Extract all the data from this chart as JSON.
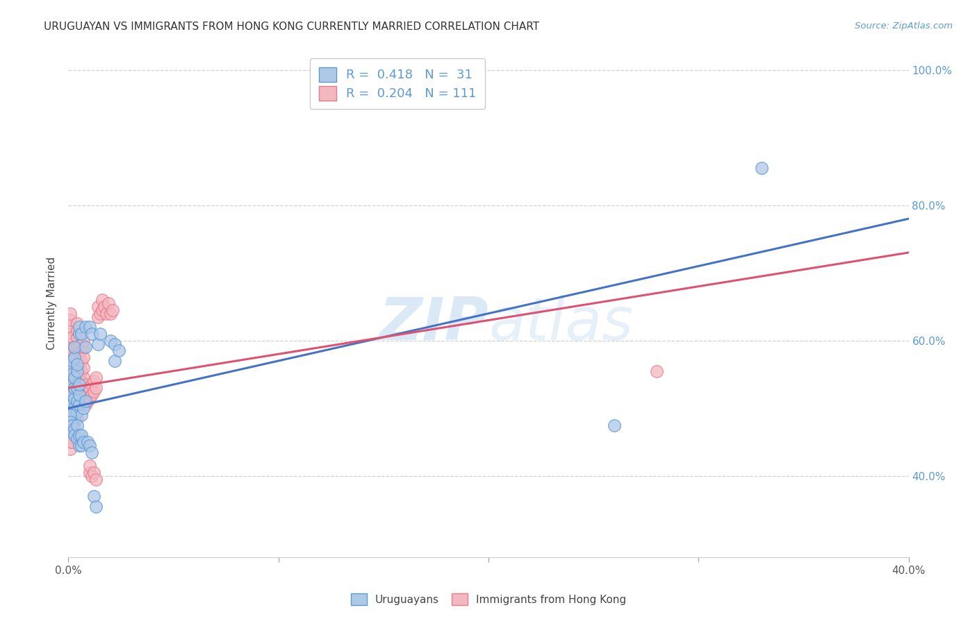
{
  "title": "URUGUAYAN VS IMMIGRANTS FROM HONG KONG CURRENTLY MARRIED CORRELATION CHART",
  "source": "Source: ZipAtlas.com",
  "ylabel": "Currently Married",
  "xmin": 0.0,
  "xmax": 0.4,
  "ymin": 0.28,
  "ymax": 1.03,
  "watermark": "ZIPAtlas",
  "blue_color": "#aec8e8",
  "pink_color": "#f4b8c1",
  "blue_edge_color": "#5b9bd5",
  "pink_edge_color": "#e87a8a",
  "blue_line_color": "#4472c4",
  "pink_line_color": "#e05070",
  "legend_label_blue": "Uruguayans",
  "legend_label_pink": "Immigrants from Hong Kong",
  "blue_scatter": [
    [
      0.001,
      0.51
    ],
    [
      0.001,
      0.51
    ],
    [
      0.002,
      0.505
    ],
    [
      0.002,
      0.52
    ],
    [
      0.002,
      0.535
    ],
    [
      0.002,
      0.49
    ],
    [
      0.002,
      0.56
    ],
    [
      0.002,
      0.57
    ],
    [
      0.002,
      0.55
    ],
    [
      0.003,
      0.5
    ],
    [
      0.003,
      0.515
    ],
    [
      0.003,
      0.53
    ],
    [
      0.003,
      0.545
    ],
    [
      0.003,
      0.485
    ],
    [
      0.003,
      0.575
    ],
    [
      0.003,
      0.59
    ],
    [
      0.004,
      0.495
    ],
    [
      0.004,
      0.51
    ],
    [
      0.004,
      0.53
    ],
    [
      0.004,
      0.555
    ],
    [
      0.004,
      0.565
    ],
    [
      0.005,
      0.505
    ],
    [
      0.005,
      0.52
    ],
    [
      0.005,
      0.535
    ],
    [
      0.005,
      0.61
    ],
    [
      0.005,
      0.62
    ],
    [
      0.006,
      0.49
    ],
    [
      0.006,
      0.61
    ],
    [
      0.008,
      0.62
    ],
    [
      0.008,
      0.59
    ],
    [
      0.01,
      0.62
    ],
    [
      0.011,
      0.61
    ],
    [
      0.014,
      0.595
    ],
    [
      0.015,
      0.61
    ],
    [
      0.02,
      0.6
    ],
    [
      0.022,
      0.595
    ],
    [
      0.022,
      0.57
    ],
    [
      0.024,
      0.585
    ],
    [
      0.001,
      0.49
    ],
    [
      0.001,
      0.48
    ],
    [
      0.002,
      0.475
    ],
    [
      0.002,
      0.465
    ],
    [
      0.003,
      0.47
    ],
    [
      0.003,
      0.46
    ],
    [
      0.004,
      0.475
    ],
    [
      0.004,
      0.455
    ],
    [
      0.005,
      0.46
    ],
    [
      0.005,
      0.445
    ],
    [
      0.006,
      0.46
    ],
    [
      0.006,
      0.445
    ],
    [
      0.007,
      0.5
    ],
    [
      0.007,
      0.45
    ],
    [
      0.008,
      0.51
    ],
    [
      0.009,
      0.45
    ],
    [
      0.01,
      0.445
    ],
    [
      0.011,
      0.435
    ],
    [
      0.012,
      0.37
    ],
    [
      0.013,
      0.355
    ],
    [
      0.26,
      0.475
    ],
    [
      0.33,
      0.855
    ]
  ],
  "pink_scatter": [
    [
      0.001,
      0.51
    ],
    [
      0.001,
      0.525
    ],
    [
      0.001,
      0.535
    ],
    [
      0.001,
      0.545
    ],
    [
      0.001,
      0.555
    ],
    [
      0.001,
      0.565
    ],
    [
      0.001,
      0.58
    ],
    [
      0.001,
      0.59
    ],
    [
      0.001,
      0.6
    ],
    [
      0.001,
      0.61
    ],
    [
      0.001,
      0.62
    ],
    [
      0.001,
      0.63
    ],
    [
      0.001,
      0.64
    ],
    [
      0.001,
      0.5
    ],
    [
      0.001,
      0.49
    ],
    [
      0.001,
      0.48
    ],
    [
      0.001,
      0.47
    ],
    [
      0.001,
      0.46
    ],
    [
      0.001,
      0.45
    ],
    [
      0.001,
      0.44
    ],
    [
      0.002,
      0.51
    ],
    [
      0.002,
      0.52
    ],
    [
      0.002,
      0.53
    ],
    [
      0.002,
      0.545
    ],
    [
      0.002,
      0.555
    ],
    [
      0.002,
      0.565
    ],
    [
      0.002,
      0.575
    ],
    [
      0.002,
      0.585
    ],
    [
      0.002,
      0.595
    ],
    [
      0.002,
      0.605
    ],
    [
      0.002,
      0.5
    ],
    [
      0.002,
      0.49
    ],
    [
      0.002,
      0.48
    ],
    [
      0.002,
      0.47
    ],
    [
      0.002,
      0.46
    ],
    [
      0.002,
      0.45
    ],
    [
      0.003,
      0.51
    ],
    [
      0.003,
      0.525
    ],
    [
      0.003,
      0.54
    ],
    [
      0.003,
      0.55
    ],
    [
      0.003,
      0.56
    ],
    [
      0.003,
      0.575
    ],
    [
      0.003,
      0.59
    ],
    [
      0.003,
      0.5
    ],
    [
      0.003,
      0.49
    ],
    [
      0.003,
      0.48
    ],
    [
      0.004,
      0.505
    ],
    [
      0.004,
      0.515
    ],
    [
      0.004,
      0.53
    ],
    [
      0.004,
      0.545
    ],
    [
      0.004,
      0.56
    ],
    [
      0.004,
      0.575
    ],
    [
      0.004,
      0.59
    ],
    [
      0.004,
      0.605
    ],
    [
      0.004,
      0.615
    ],
    [
      0.004,
      0.625
    ],
    [
      0.004,
      0.495
    ],
    [
      0.004,
      0.485
    ],
    [
      0.005,
      0.51
    ],
    [
      0.005,
      0.525
    ],
    [
      0.005,
      0.54
    ],
    [
      0.005,
      0.555
    ],
    [
      0.005,
      0.57
    ],
    [
      0.005,
      0.58
    ],
    [
      0.005,
      0.59
    ],
    [
      0.006,
      0.51
    ],
    [
      0.006,
      0.525
    ],
    [
      0.006,
      0.54
    ],
    [
      0.006,
      0.555
    ],
    [
      0.006,
      0.57
    ],
    [
      0.006,
      0.585
    ],
    [
      0.006,
      0.595
    ],
    [
      0.007,
      0.515
    ],
    [
      0.007,
      0.53
    ],
    [
      0.007,
      0.545
    ],
    [
      0.007,
      0.56
    ],
    [
      0.007,
      0.575
    ],
    [
      0.007,
      0.59
    ],
    [
      0.007,
      0.6
    ],
    [
      0.008,
      0.505
    ],
    [
      0.008,
      0.52
    ],
    [
      0.008,
      0.535
    ],
    [
      0.009,
      0.51
    ],
    [
      0.009,
      0.525
    ],
    [
      0.01,
      0.515
    ],
    [
      0.01,
      0.53
    ],
    [
      0.011,
      0.52
    ],
    [
      0.011,
      0.535
    ],
    [
      0.012,
      0.525
    ],
    [
      0.012,
      0.54
    ],
    [
      0.013,
      0.53
    ],
    [
      0.013,
      0.545
    ],
    [
      0.014,
      0.635
    ],
    [
      0.014,
      0.65
    ],
    [
      0.015,
      0.64
    ],
    [
      0.016,
      0.645
    ],
    [
      0.016,
      0.66
    ],
    [
      0.017,
      0.65
    ],
    [
      0.018,
      0.64
    ],
    [
      0.019,
      0.655
    ],
    [
      0.02,
      0.64
    ],
    [
      0.021,
      0.645
    ],
    [
      0.01,
      0.405
    ],
    [
      0.01,
      0.415
    ],
    [
      0.011,
      0.4
    ],
    [
      0.012,
      0.405
    ],
    [
      0.013,
      0.395
    ],
    [
      0.28,
      0.555
    ]
  ],
  "blue_line_x": [
    0.0,
    0.4
  ],
  "blue_line_y": [
    0.5,
    0.78
  ],
  "pink_line_x": [
    0.0,
    0.4
  ],
  "pink_line_y": [
    0.53,
    0.73
  ],
  "ytick_positions": [
    0.4,
    0.6,
    0.8,
    1.0
  ],
  "ytick_labels": [
    "40.0%",
    "60.0%",
    "80.0%",
    "100.0%"
  ],
  "xtick_positions": [
    0.0,
    0.1,
    0.2,
    0.3,
    0.4
  ],
  "xtick_labels_show": [
    "0.0%",
    "",
    "",
    "",
    "40.0%"
  ],
  "grid_color": "#cccccc",
  "background_color": "#ffffff",
  "title_fontsize": 11,
  "axis_label_fontsize": 11,
  "tick_fontsize": 11
}
